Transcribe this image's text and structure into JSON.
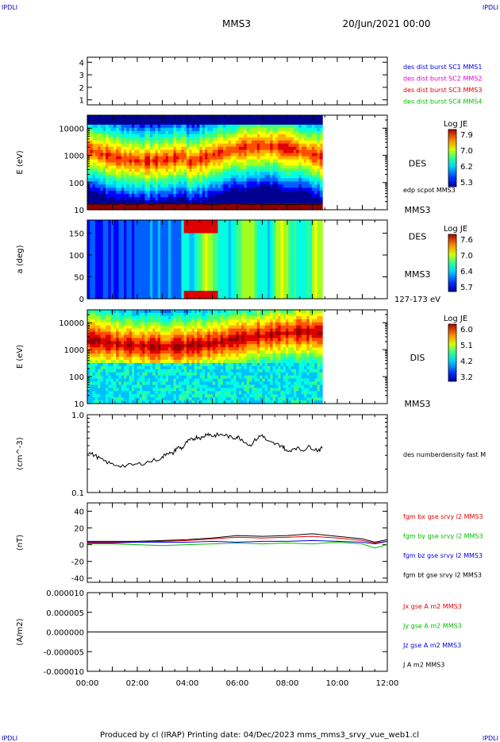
{
  "corner_marks": {
    "tl": "IPDLI",
    "tr": "IPDLI",
    "bl": "IPDLI",
    "br": "IPDLI"
  },
  "header": {
    "spacecraft": "MMS3",
    "date": "20/Jun/2021 00:00"
  },
  "footer": "Produced by cl (IRAP)   Printing date: 04/Dec/2023   mms_mms3_srvy_vue_web1.cl",
  "colors": {
    "black": "#000000",
    "red": "#e00000",
    "green": "#00c000",
    "blue": "#0000e0",
    "magenta": "#e000e0"
  },
  "chart_data": [
    {
      "type": "timeline",
      "ylim": [
        0.6,
        4.4
      ],
      "yticks": [
        "1",
        "2",
        "3",
        "4"
      ],
      "legend": [
        {
          "text": "des dist burst SC1 MMS1",
          "color": "#0000e0"
        },
        {
          "text": "des dist burst SC2 MMS2",
          "color": "#e000e0"
        },
        {
          "text": "des dist burst SC3 MMS3",
          "color": "#e00000"
        },
        {
          "text": "des dist burst SC4 MMS4",
          "color": "#00c000"
        }
      ]
    },
    {
      "type": "heatmap",
      "ylabel": "E (eV)",
      "yscale": "log",
      "ylim": [
        10,
        30000
      ],
      "yticks": [
        "10",
        "100",
        "1000",
        "10000"
      ],
      "data_end_hour": 9.4,
      "label": "DES",
      "sc": "MMS3",
      "overlay_label": "edp scpot MMS3",
      "colorbar": {
        "title": "Log JE",
        "ticks": [
          "7.9",
          "7.0",
          "6.2",
          "5.3"
        ]
      }
    },
    {
      "type": "heatmap",
      "ylabel": "a (deg)",
      "ylim": [
        0,
        180
      ],
      "yticks": [
        "0",
        "50",
        "100",
        "150"
      ],
      "data_end_hour": 9.4,
      "label": "DES",
      "sc": "MMS3",
      "energy_range": "127-173 eV",
      "colorbar": {
        "title": "Log JE",
        "ticks": [
          "7.6",
          "7.0",
          "6.4",
          "5.7"
        ]
      }
    },
    {
      "type": "heatmap",
      "ylabel": "E (eV)",
      "yscale": "log",
      "ylim": [
        10,
        30000
      ],
      "yticks": [
        "10",
        "100",
        "1000",
        "10000"
      ],
      "data_end_hour": 9.4,
      "label": "DIS",
      "sc": "MMS3",
      "colorbar": {
        "title": "Log JE",
        "ticks": [
          "6.0",
          "5.1",
          "4.2",
          "3.2"
        ]
      }
    },
    {
      "type": "line",
      "ylabel": "(cm^-3)",
      "yscale": "log",
      "ylim": [
        0.1,
        1.0
      ],
      "yticks": [
        "0.1",
        "1.0"
      ],
      "series": [
        {
          "name": "des numberdensity fast M",
          "color": "#000000",
          "x": [
            0.0,
            0.3,
            0.6,
            1.0,
            1.5,
            2.0,
            2.5,
            3.0,
            3.2,
            3.4,
            3.6,
            3.8,
            4.0,
            4.2,
            4.4,
            4.6,
            4.8,
            5.0,
            5.2,
            5.5,
            5.8,
            6.0,
            6.2,
            6.5,
            6.8,
            7.0,
            7.2,
            7.5,
            7.8,
            8.0,
            8.3,
            8.6,
            8.9,
            9.2,
            9.4
          ],
          "y": [
            0.33,
            0.3,
            0.26,
            0.23,
            0.22,
            0.23,
            0.25,
            0.28,
            0.33,
            0.31,
            0.38,
            0.37,
            0.45,
            0.48,
            0.52,
            0.5,
            0.58,
            0.53,
            0.55,
            0.55,
            0.5,
            0.52,
            0.48,
            0.4,
            0.5,
            0.55,
            0.45,
            0.42,
            0.4,
            0.33,
            0.38,
            0.35,
            0.39,
            0.35,
            0.37
          ]
        }
      ]
    },
    {
      "type": "line",
      "ylabel": "(nT)",
      "ylim": [
        -45,
        50
      ],
      "yticks": [
        "-40",
        "-20",
        "0",
        "20",
        "40"
      ],
      "series": [
        {
          "name": "fgm bx gse srvy l2 MMS3",
          "color": "#e00000",
          "x": [
            0,
            1,
            2,
            3,
            4,
            5,
            6,
            7,
            8,
            9,
            10,
            11,
            11.5,
            12
          ],
          "y": [
            3,
            3,
            3,
            4,
            5,
            7,
            9,
            8,
            9,
            10,
            8,
            5,
            2,
            4
          ]
        },
        {
          "name": "fgm by gse srvy l2 MMS3",
          "color": "#00c000",
          "x": [
            0,
            1,
            2,
            3,
            4,
            5,
            6,
            7,
            8,
            9,
            10,
            11,
            11.5,
            12
          ],
          "y": [
            1,
            1,
            0,
            -1,
            0,
            1,
            2,
            1,
            2,
            1,
            3,
            1,
            -4,
            0
          ]
        },
        {
          "name": "fgm bz gse srvy l2 MMS3",
          "color": "#0000e0",
          "x": [
            0,
            1,
            2,
            3,
            4,
            5,
            6,
            7,
            8,
            9,
            10,
            11,
            11.5,
            12
          ],
          "y": [
            2,
            2,
            3,
            3,
            3,
            4,
            3,
            4,
            4,
            5,
            4,
            3,
            1,
            4
          ]
        },
        {
          "name": "fgm bt gse srvy l2 MMS3",
          "color": "#000000",
          "x": [
            0,
            1,
            2,
            3,
            4,
            5,
            6,
            7,
            8,
            9,
            10,
            11,
            11.5,
            12
          ],
          "y": [
            4,
            4,
            4,
            5,
            6,
            8,
            11,
            10,
            11,
            13,
            10,
            7,
            3,
            6
          ]
        }
      ]
    },
    {
      "type": "line",
      "ylabel": "(A/m2)",
      "ylim": [
        -1e-05,
        1e-05
      ],
      "yticks": [
        "-0.000010",
        "-0.000005",
        "0.000000",
        "0.000005",
        "0.000010"
      ],
      "series": [
        {
          "name": "Jx gse A m2 MMS3",
          "color": "#e00000",
          "x": [
            0,
            12
          ],
          "y": [
            0,
            0
          ]
        },
        {
          "name": "Jy gse A m2 MMS3",
          "color": "#00c000",
          "x": [
            0,
            12
          ],
          "y": [
            0,
            0
          ]
        },
        {
          "name": "Jz gse A m2 MMS3",
          "color": "#0000e0",
          "x": [
            0,
            12
          ],
          "y": [
            0,
            0
          ]
        },
        {
          "name": "J A m2 MMS3",
          "color": "#000000",
          "x": [
            0,
            12
          ],
          "y": [
            0,
            0
          ]
        }
      ]
    }
  ],
  "x_axis": {
    "xlim": [
      0,
      12
    ],
    "ticks": [
      {
        "value": 0,
        "label": "00:00"
      },
      {
        "value": 2,
        "label": "02:00"
      },
      {
        "value": 4,
        "label": "04:00"
      },
      {
        "value": 6,
        "label": "06:00"
      },
      {
        "value": 8,
        "label": "08:00"
      },
      {
        "value": 10,
        "label": "10:00"
      },
      {
        "value": 12,
        "label": "12:00"
      }
    ]
  }
}
